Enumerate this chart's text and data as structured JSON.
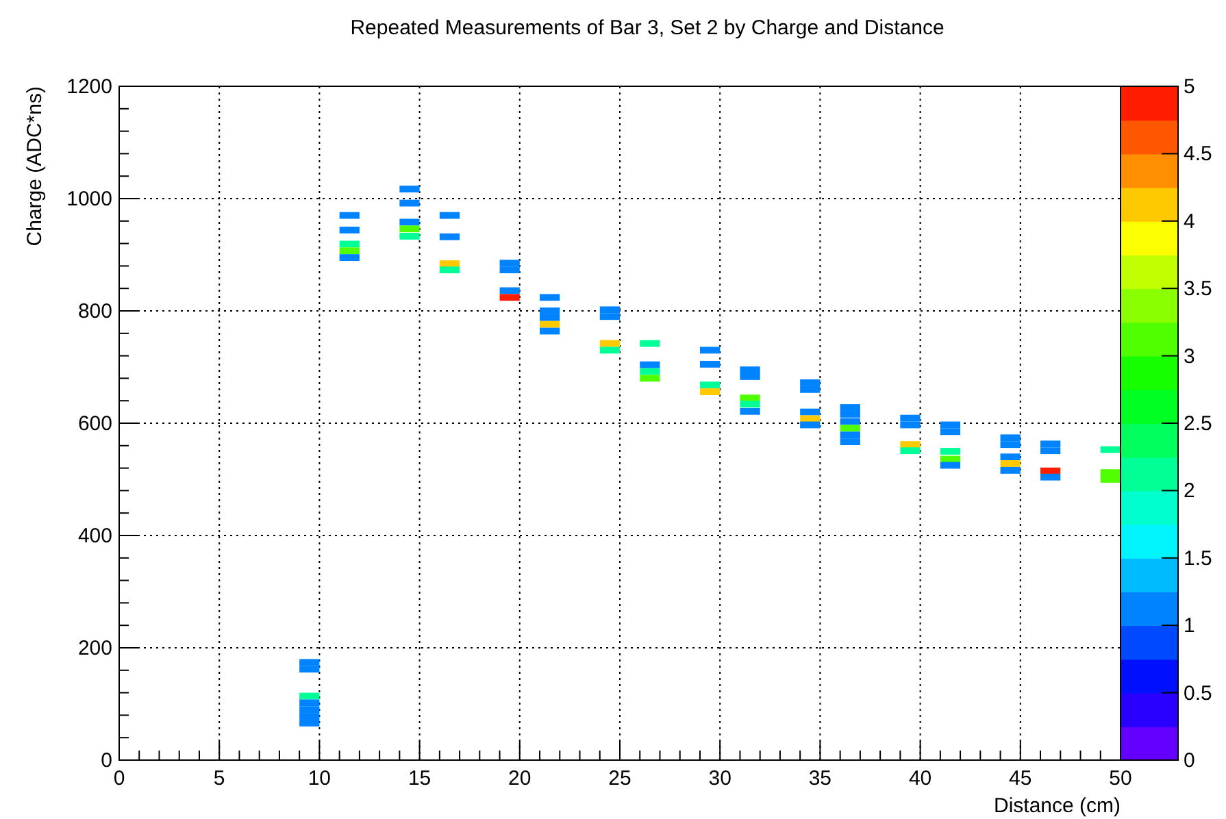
{
  "chart_data": {
    "type": "scatter",
    "title": "Repeated Measurements of Bar 3, Set 2 by Charge and Distance",
    "xlabel": "Distance (cm)",
    "ylabel": "Charge (ADC*ns)",
    "marker": "square",
    "grid": true,
    "x": [
      9.5,
      9.5,
      9.5,
      9.5,
      9.5,
      9.5,
      9.5,
      11.5,
      11.5,
      11.5,
      11.5,
      11.5,
      14.5,
      14.5,
      14.5,
      14.5,
      14.5,
      16.5,
      16.5,
      16.5,
      16.5,
      19.5,
      19.5,
      19.5,
      19.5,
      21.5,
      21.5,
      21.5,
      21.5,
      21.5,
      24.5,
      24.5,
      24.5,
      24.5,
      26.5,
      26.5,
      26.5,
      26.5,
      29.5,
      29.5,
      29.5,
      29.5,
      31.5,
      31.5,
      31.5,
      31.5,
      31.5,
      34.5,
      34.5,
      34.5,
      34.5,
      34.5,
      36.5,
      36.5,
      36.5,
      36.5,
      36.5,
      36.5,
      39.5,
      39.5,
      39.5,
      39.5,
      41.5,
      41.5,
      41.5,
      41.5,
      41.5,
      44.5,
      44.5,
      44.5,
      44.5,
      44.5,
      46.5,
      46.5,
      46.5,
      46.5,
      49.5,
      49.5,
      49.5
    ],
    "values": [
      174,
      162,
      114,
      102,
      90,
      78,
      66,
      970,
      944,
      919,
      907,
      895,
      1017,
      992,
      958,
      946,
      933,
      970,
      932,
      884,
      873,
      885,
      873,
      836,
      824,
      824,
      800,
      788,
      776,
      764,
      802,
      790,
      742,
      730,
      742,
      704,
      692,
      680,
      730,
      705,
      668,
      656,
      695,
      683,
      645,
      634,
      621,
      672,
      660,
      620,
      608,
      597,
      628,
      616,
      603,
      591,
      579,
      567,
      609,
      597,
      562,
      551,
      597,
      585,
      550,
      536,
      525,
      574,
      562,
      540,
      528,
      516,
      563,
      551,
      515,
      504,
      553,
      512,
      500
    ],
    "cvalues": [
      1,
      1,
      2,
      1,
      1,
      1,
      1,
      1,
      1,
      2,
      3,
      1,
      1,
      1,
      1,
      3,
      2,
      1,
      1,
      4,
      2,
      1,
      1,
      1,
      5,
      1,
      1,
      1,
      4,
      1,
      1,
      1,
      4,
      2,
      2,
      1,
      2,
      3,
      1,
      1,
      2,
      4,
      1,
      1,
      3,
      2,
      1,
      1,
      1,
      1,
      4,
      1,
      1,
      1,
      1,
      3,
      1,
      1,
      1,
      1,
      4,
      2,
      1,
      1,
      2,
      3,
      1,
      1,
      1,
      1,
      4,
      1,
      1,
      1,
      5,
      1,
      2,
      3,
      3
    ],
    "xlim": [
      0,
      50
    ],
    "xticks": [
      0,
      5,
      10,
      15,
      20,
      25,
      30,
      35,
      40,
      45,
      50
    ],
    "ylim": [
      0,
      1200
    ],
    "yticks": [
      0,
      200,
      400,
      600,
      800,
      1000,
      1200
    ],
    "clim": [
      0,
      5
    ],
    "cticks": [
      0,
      0.5,
      1,
      1.5,
      2,
      2.5,
      3,
      3.5,
      4,
      4.5,
      5
    ]
  }
}
